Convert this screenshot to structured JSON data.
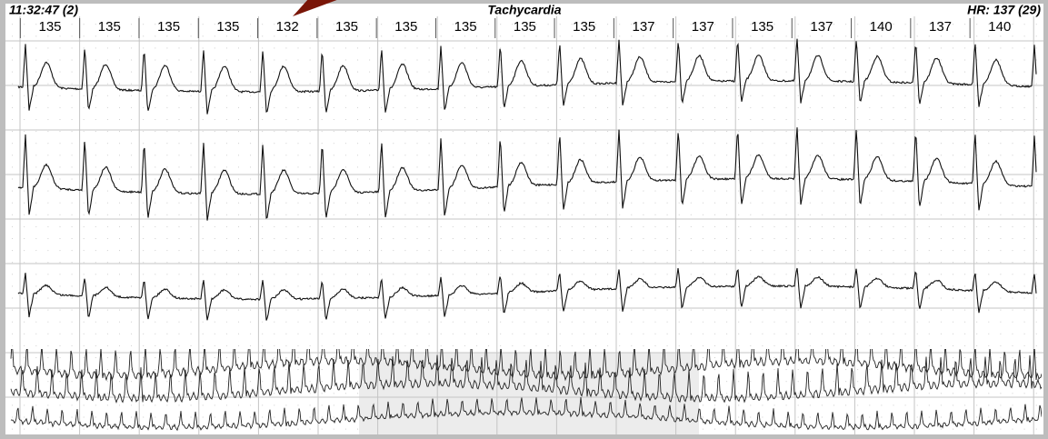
{
  "header": {
    "time": "11:32:47 (2)",
    "rhythm": "Tachycardia",
    "heart_rate": "HR: 137 (29)"
  },
  "beats": [
    135,
    135,
    135,
    135,
    132,
    135,
    135,
    135,
    135,
    135,
    137,
    137,
    135,
    137,
    140,
    137,
    140
  ]
}
